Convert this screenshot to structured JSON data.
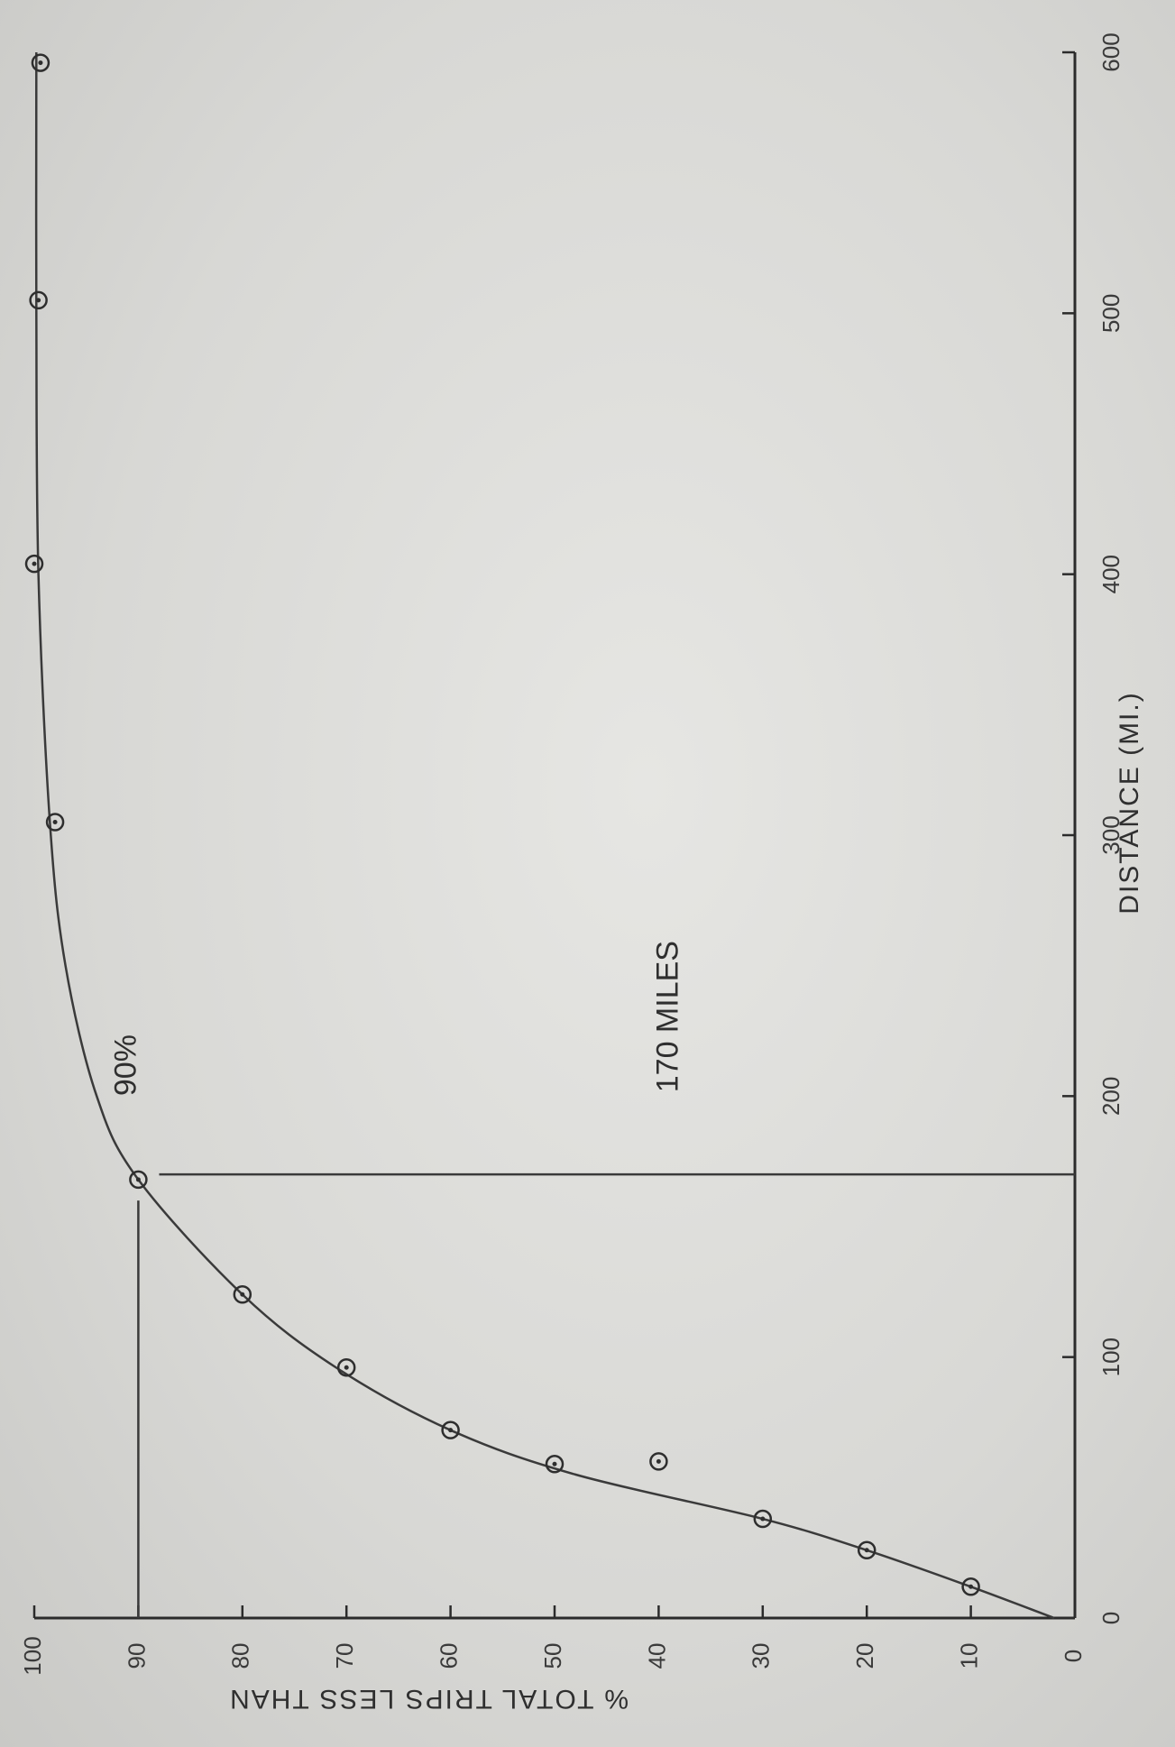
{
  "chart_data": {
    "type": "scatter",
    "orientation": "rotated 90 degrees counter-clockwise",
    "xlabel": "DISTANCE   (MI.)",
    "ylabel": "% TOTAL TRIPS LESS THAN",
    "xlim": [
      0,
      600
    ],
    "ylim": [
      0,
      100
    ],
    "x_ticks": [
      "0",
      "100",
      "200",
      "300",
      "400",
      "500",
      "600"
    ],
    "y_ticks": [
      "0",
      "10",
      "20",
      "30",
      "40",
      "50",
      "60",
      "70",
      "80",
      "90",
      "100"
    ],
    "grid": false,
    "points": [
      {
        "x": 12,
        "y": 10
      },
      {
        "x": 26,
        "y": 20
      },
      {
        "x": 38,
        "y": 30
      },
      {
        "x": 60,
        "y": 40
      },
      {
        "x": 59,
        "y": 50
      },
      {
        "x": 72,
        "y": 60
      },
      {
        "x": 96,
        "y": 70
      },
      {
        "x": 124,
        "y": 80
      },
      {
        "x": 168,
        "y": 90
      },
      {
        "x": 305,
        "y": 98
      },
      {
        "x": 404,
        "y": 100
      },
      {
        "x": 505,
        "y": 99.6
      },
      {
        "x": 596,
        "y": 99.4
      }
    ],
    "fitted_curve": [
      [
        0,
        2
      ],
      [
        12,
        10
      ],
      [
        26,
        20
      ],
      [
        38,
        30
      ],
      [
        55,
        48
      ],
      [
        72,
        60
      ],
      [
        96,
        71
      ],
      [
        124,
        80
      ],
      [
        168,
        90
      ],
      [
        200,
        94
      ],
      [
        250,
        97
      ],
      [
        305,
        98.5
      ],
      [
        400,
        99.6
      ],
      [
        500,
        99.8
      ],
      [
        600,
        99.8
      ]
    ],
    "annotations": {
      "percent_label": "90%",
      "distance_label": "170 MILES",
      "percent_line": {
        "y": 90,
        "x_from": 0,
        "x_to": 160
      },
      "distance_line": {
        "x": 170,
        "y_from": 0,
        "y_to": 88
      }
    }
  }
}
